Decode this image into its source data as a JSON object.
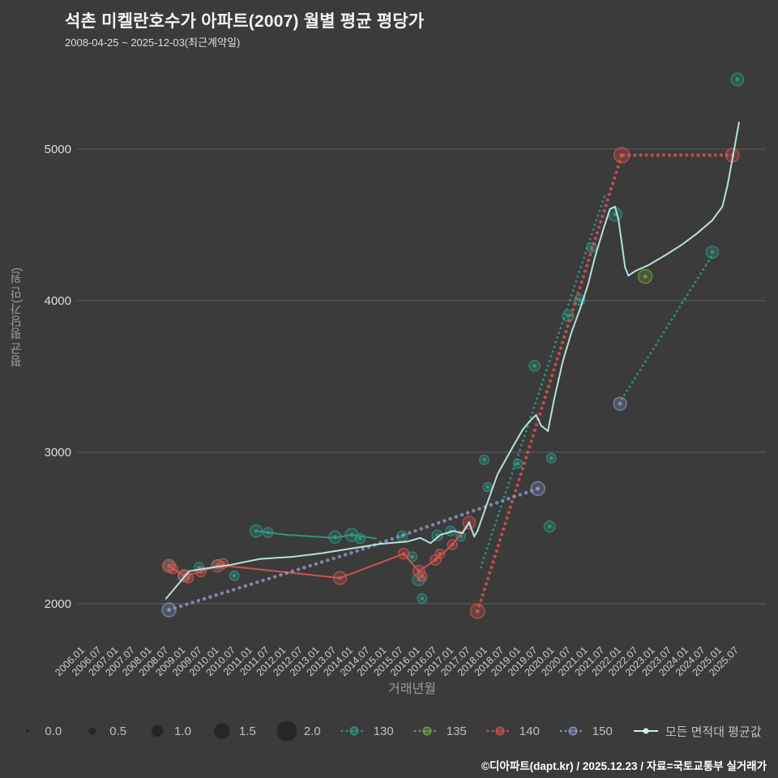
{
  "header": {
    "title": "석촌 미켈란호수가 아파트(2007) 월별 평균 평당가",
    "subtitle": "2008-04-25 ~ 2025-12-03(최근계약일)"
  },
  "footer": {
    "credit": "©디아파트(dapt.kr) / 2025.12.23 / 자료=국토교통부 실거래가"
  },
  "colors": {
    "background": "#3b3b3b",
    "grid": "#7a7a7a",
    "tick_label": "#cfcfcf",
    "axis_title": "#9a9a9a"
  },
  "chart_data": {
    "type": "scatter",
    "title": "석촌 미켈란호수가 아파트(2007) 월별 평균 평당가",
    "xlabel": "거래년월",
    "ylabel": "평균 평당가(만 원)",
    "ylim": [
      1800,
      5600
    ],
    "xlim": [
      2006.0,
      2025.5
    ],
    "grid": "horizontal-only",
    "legend_position": "bottom",
    "yticks": [
      2000,
      3000,
      4000,
      5000
    ],
    "xticks": [
      "2006.01",
      "2006.07",
      "2007.01",
      "2007.07",
      "2008.01",
      "2008.07",
      "2009.01",
      "2009.07",
      "2010.01",
      "2010.07",
      "2011.01",
      "2011.07",
      "2012.01",
      "2012.07",
      "2013.01",
      "2013.07",
      "2014.01",
      "2014.07",
      "2015.01",
      "2015.07",
      "2016.01",
      "2016.07",
      "2017.01",
      "2017.07",
      "2018.01",
      "2018.07",
      "2019.01",
      "2019.07",
      "2020.01",
      "2020.07",
      "2021.01",
      "2021.07",
      "2022.01",
      "2022.07",
      "2023.01",
      "2023.07",
      "2024.01",
      "2024.07",
      "2025.01",
      "2025.07"
    ],
    "size_legend": {
      "labels": [
        "0.0",
        "0.5",
        "1.0",
        "1.5",
        "2.0"
      ],
      "values": [
        0.0,
        0.5,
        1.0,
        1.5,
        2.0
      ]
    },
    "series": [
      {
        "name": "130",
        "color": "#2e9d8a",
        "legend_marker": "dots",
        "dot_w": 3.0,
        "dot_gap": 6,
        "points": [
          [
            2008.5,
            2250,
            0.5
          ],
          [
            2008.95,
            2185,
            0.6
          ],
          [
            2009.4,
            2240,
            0.5
          ],
          [
            2009.95,
            2260,
            0.45
          ],
          [
            2010.45,
            2185,
            0.45
          ],
          [
            2011.1,
            2480,
            0.8
          ],
          [
            2011.45,
            2470,
            0.5
          ],
          [
            2013.45,
            2440,
            0.8
          ],
          [
            2013.95,
            2455,
            0.9
          ],
          [
            2014.2,
            2430,
            0.5
          ],
          [
            2015.45,
            2445,
            0.6
          ],
          [
            2015.75,
            2310,
            0.5
          ],
          [
            2015.95,
            2160,
            0.8
          ],
          [
            2016.05,
            2035,
            0.45
          ],
          [
            2016.5,
            2450,
            0.6
          ],
          [
            2016.9,
            2480,
            0.5
          ],
          [
            2017.2,
            2445,
            0.45
          ],
          [
            2017.9,
            2950,
            0.45
          ],
          [
            2018.0,
            2770,
            0.4
          ],
          [
            2018.9,
            2925,
            0.4
          ],
          [
            2019.4,
            3570,
            0.6
          ],
          [
            2019.9,
            2960,
            0.45
          ],
          [
            2019.85,
            2510,
            0.65
          ],
          [
            2020.4,
            3900,
            0.7
          ],
          [
            2020.75,
            4005,
            0.6
          ],
          [
            2021.1,
            4350,
            0.5
          ],
          [
            2021.8,
            4570,
            0.95
          ],
          [
            2024.7,
            4320,
            0.8
          ],
          [
            2025.45,
            5460,
            0.85
          ]
        ],
        "solid": [
          [
            [
              2011.1,
              2480
            ],
            [
              2012.0,
              2455
            ],
            [
              2013.45,
              2435
            ],
            [
              2013.95,
              2455
            ],
            [
              2014.7,
              2430
            ]
          ]
        ],
        "dotted": [
          [
            [
              2017.8,
              2240
            ],
            [
              2021.5,
              4700
            ]
          ],
          [
            [
              2022.0,
              3350
            ],
            [
              2024.7,
              4300
            ]
          ]
        ]
      },
      {
        "name": "135",
        "color": "#7aa83e",
        "legend_marker": "dots",
        "points": [
          [
            2022.7,
            4160,
            1.0
          ]
        ]
      },
      {
        "name": "140",
        "color": "#d85555",
        "legend_marker": "dots",
        "dot_w": 4.2,
        "dot_gap": 7,
        "points": [
          [
            2008.5,
            2250,
            0.9
          ],
          [
            2008.62,
            2230,
            0.5
          ],
          [
            2008.95,
            2185,
            0.8
          ],
          [
            2009.08,
            2170,
            0.5
          ],
          [
            2009.45,
            2210,
            0.5
          ],
          [
            2009.95,
            2250,
            0.8
          ],
          [
            2010.12,
            2265,
            0.5
          ],
          [
            2013.6,
            2170,
            0.9
          ],
          [
            2015.5,
            2330,
            0.6
          ],
          [
            2015.95,
            2215,
            0.75
          ],
          [
            2016.05,
            2180,
            0.5
          ],
          [
            2016.45,
            2290,
            0.6
          ],
          [
            2016.58,
            2330,
            0.45
          ],
          [
            2016.95,
            2390,
            0.5
          ],
          [
            2017.45,
            2535,
            0.85
          ],
          [
            2017.7,
            1950,
            1.05
          ],
          [
            2022.0,
            4960,
            1.2
          ],
          [
            2025.3,
            4960,
            0.95
          ]
        ],
        "solid": [
          [
            [
              2008.5,
              2250
            ],
            [
              2008.95,
              2185
            ],
            [
              2009.45,
              2210
            ],
            [
              2009.95,
              2250
            ],
            [
              2010.3,
              2248
            ],
            [
              2013.6,
              2170
            ],
            [
              2015.5,
              2330
            ],
            [
              2015.95,
              2215
            ],
            [
              2016.45,
              2290
            ],
            [
              2016.95,
              2390
            ],
            [
              2017.45,
              2535
            ]
          ]
        ],
        "dotted": [
          [
            [
              2017.7,
              1950
            ],
            [
              2022.0,
              4960
            ]
          ],
          [
            [
              2022.05,
              4960
            ],
            [
              2025.3,
              4960
            ]
          ]
        ]
      },
      {
        "name": "150",
        "color": "#8d9ac9",
        "legend_marker": "dots",
        "dot_w": 4.4,
        "dot_gap": 7.5,
        "points": [
          [
            2008.5,
            1960,
            1.0
          ],
          [
            2019.5,
            2760,
            1.0
          ],
          [
            2021.95,
            3320,
            0.9
          ]
        ],
        "dotted": [
          [
            [
              2008.5,
              1960
            ],
            [
              2014.0,
              2340
            ],
            [
              2019.5,
              2760
            ]
          ]
        ]
      },
      {
        "name": "모든 면적대 평균값",
        "color": "#c9f2ec",
        "legend_marker": "line",
        "line_w": 2,
        "solid": [
          [
            [
              2008.4,
              2030
            ],
            [
              2009.1,
              2215
            ],
            [
              2009.8,
              2240
            ],
            [
              2010.3,
              2255
            ],
            [
              2011.2,
              2295
            ],
            [
              2012.2,
              2310
            ],
            [
              2013.1,
              2335
            ],
            [
              2014.1,
              2370
            ],
            [
              2014.8,
              2395
            ],
            [
              2015.6,
              2410
            ],
            [
              2016.0,
              2435
            ],
            [
              2016.3,
              2400
            ],
            [
              2016.6,
              2455
            ],
            [
              2017.0,
              2480
            ],
            [
              2017.25,
              2465
            ],
            [
              2017.45,
              2535
            ],
            [
              2017.6,
              2445
            ],
            [
              2017.7,
              2480
            ],
            [
              2018.0,
              2670
            ],
            [
              2018.3,
              2855
            ],
            [
              2018.7,
              3015
            ],
            [
              2019.05,
              3150
            ],
            [
              2019.3,
              3215
            ],
            [
              2019.45,
              3245
            ],
            [
              2019.6,
              3175
            ],
            [
              2019.8,
              3140
            ],
            [
              2020.0,
              3365
            ],
            [
              2020.25,
              3605
            ],
            [
              2020.5,
              3790
            ],
            [
              2020.75,
              3940
            ],
            [
              2021.0,
              4110
            ],
            [
              2021.2,
              4285
            ],
            [
              2021.45,
              4470
            ],
            [
              2021.65,
              4605
            ],
            [
              2021.8,
              4620
            ],
            [
              2021.9,
              4540
            ],
            [
              2022.0,
              4380
            ],
            [
              2022.1,
              4220
            ],
            [
              2022.2,
              4165
            ],
            [
              2022.4,
              4195
            ],
            [
              2022.8,
              4235
            ],
            [
              2023.3,
              4300
            ],
            [
              2023.8,
              4370
            ],
            [
              2024.25,
              4445
            ],
            [
              2024.7,
              4530
            ],
            [
              2025.0,
              4620
            ],
            [
              2025.15,
              4755
            ],
            [
              2025.35,
              4995
            ],
            [
              2025.5,
              5180
            ]
          ]
        ]
      }
    ]
  }
}
